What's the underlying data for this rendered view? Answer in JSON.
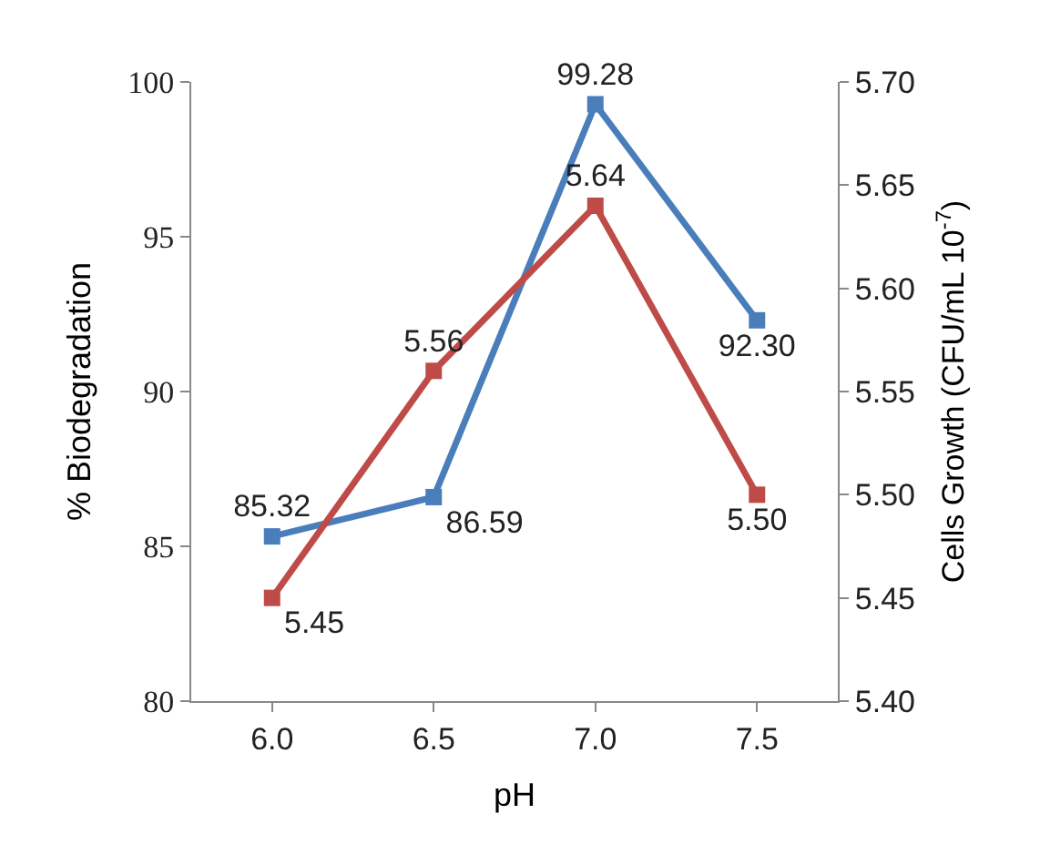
{
  "chart_data": {
    "type": "line",
    "xlabel": "pH",
    "ylabel": "% Biodegradation",
    "y2label": "Cells Growth (CFU/mL 10$^{-7}$)",
    "x": [
      6.0,
      6.5,
      7.0,
      7.5
    ],
    "xlim": [
      5.75,
      7.75
    ],
    "xticks": [
      {
        "value": 6.0,
        "label": "6.0"
      },
      {
        "value": 6.5,
        "label": "6.5"
      },
      {
        "value": 7.0,
        "label": "7.0"
      },
      {
        "value": 7.5,
        "label": "7.5"
      }
    ],
    "ylim": [
      80,
      100
    ],
    "yticks": [
      80,
      85,
      90,
      95,
      100
    ],
    "y2lim": [
      5.4,
      5.7
    ],
    "y2ticks": [
      {
        "value": 5.4,
        "label": "5.40"
      },
      {
        "value": 5.45,
        "label": "5.45"
      },
      {
        "value": 5.5,
        "label": "5.50"
      },
      {
        "value": 5.55,
        "label": "5.55"
      },
      {
        "value": 5.6,
        "label": "5.60"
      },
      {
        "value": 5.65,
        "label": "5.65"
      },
      {
        "value": 5.7,
        "label": "5.70"
      }
    ],
    "series": [
      {
        "color": "#4a7ebb",
        "values": [
          85.32,
          86.59,
          99.28,
          92.3
        ],
        "value_labels": [
          "85.32",
          "86.59",
          "99.28",
          "92.30"
        ]
      },
      {
        "color": "#be4b48",
        "axis": "y2",
        "values": [
          5.45,
          5.56,
          5.64,
          5.5
        ],
        "value_labels": [
          "5.45",
          "5.56",
          "5.64",
          "5.50"
        ]
      }
    ],
    "marker": "square",
    "line_style": "solid"
  }
}
